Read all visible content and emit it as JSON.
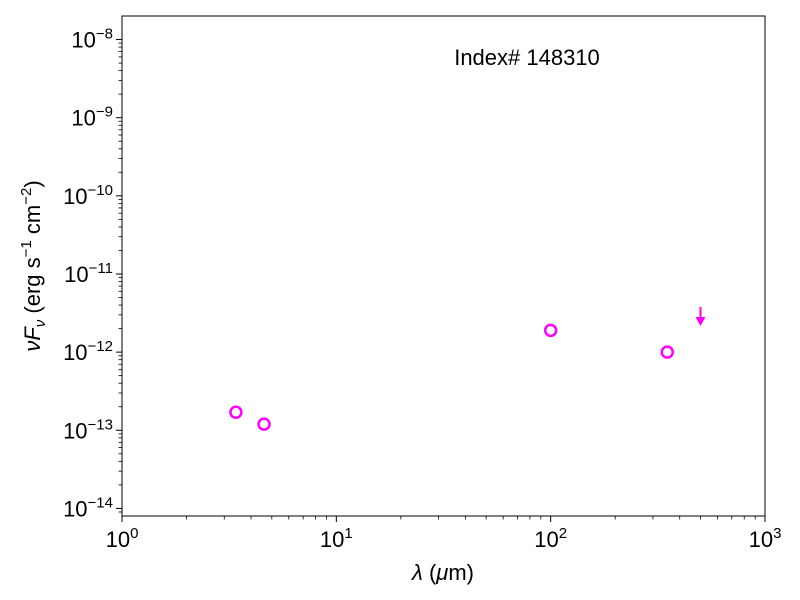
{
  "chart_data": {
    "type": "scatter",
    "annotation": "Index# 148310",
    "xlabel": "λ (μm)",
    "ylabel": "νFν (erg s⁻¹ cm⁻²)",
    "xscale": "log",
    "yscale": "log",
    "xlim": [
      1,
      1000
    ],
    "ylim": [
      8e-15,
      2e-08
    ],
    "grid": false,
    "x_ticks": [
      {
        "base": "10",
        "exp": "0",
        "value": 1
      },
      {
        "base": "10",
        "exp": "1",
        "value": 10
      },
      {
        "base": "10",
        "exp": "2",
        "value": 100
      },
      {
        "base": "10",
        "exp": "3",
        "value": 1000
      }
    ],
    "y_ticks": [
      {
        "base": "10",
        "exp": "−14",
        "value": 1e-14
      },
      {
        "base": "10",
        "exp": "−13",
        "value": 1e-13
      },
      {
        "base": "10",
        "exp": "−12",
        "value": 1e-12
      },
      {
        "base": "10",
        "exp": "−11",
        "value": 1e-11
      },
      {
        "base": "10",
        "exp": "−10",
        "value": 1e-10
      },
      {
        "base": "10",
        "exp": "−9",
        "value": 1e-09
      },
      {
        "base": "10",
        "exp": "−8",
        "value": 1e-08
      }
    ],
    "series": [
      {
        "marker": "open-circle",
        "color": "#ff00ff",
        "points": [
          {
            "x": 3.4,
            "y": 1.7e-13
          },
          {
            "x": 4.6,
            "y": 1.2e-13
          },
          {
            "x": 100,
            "y": 1.9e-12
          },
          {
            "x": 350,
            "y": 1e-12
          }
        ]
      },
      {
        "marker": "upper-limit-arrow",
        "color": "#ff00ff",
        "points": [
          {
            "x": 500,
            "y": 2.5e-12
          }
        ]
      }
    ]
  }
}
